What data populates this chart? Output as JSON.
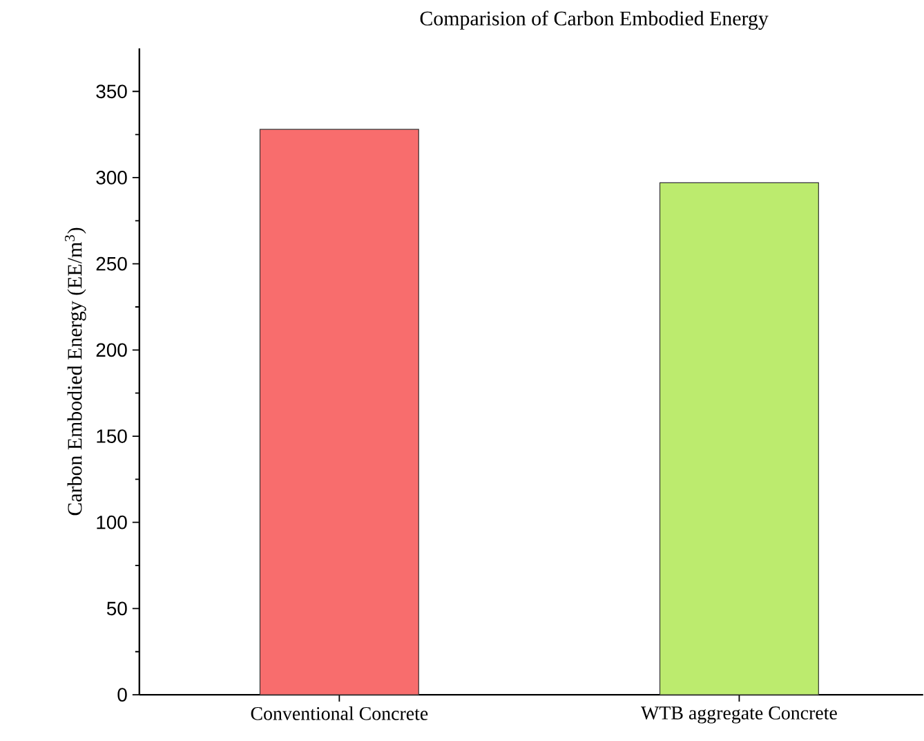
{
  "chart_data": {
    "type": "bar",
    "title": "Comparision of Carbon Embodied Energy",
    "ylabel": "Carbon Embodied Energy (EE/m$^{3}$)",
    "categories": [
      "Conventional Concrete",
      "WTB aggregate Concrete"
    ],
    "values": [
      328,
      297
    ],
    "colors": [
      "#f86d6d",
      "#bceb6e"
    ],
    "ylim": [
      0,
      375
    ],
    "yticks": [
      0,
      50,
      100,
      150,
      200,
      250,
      300,
      350
    ]
  }
}
